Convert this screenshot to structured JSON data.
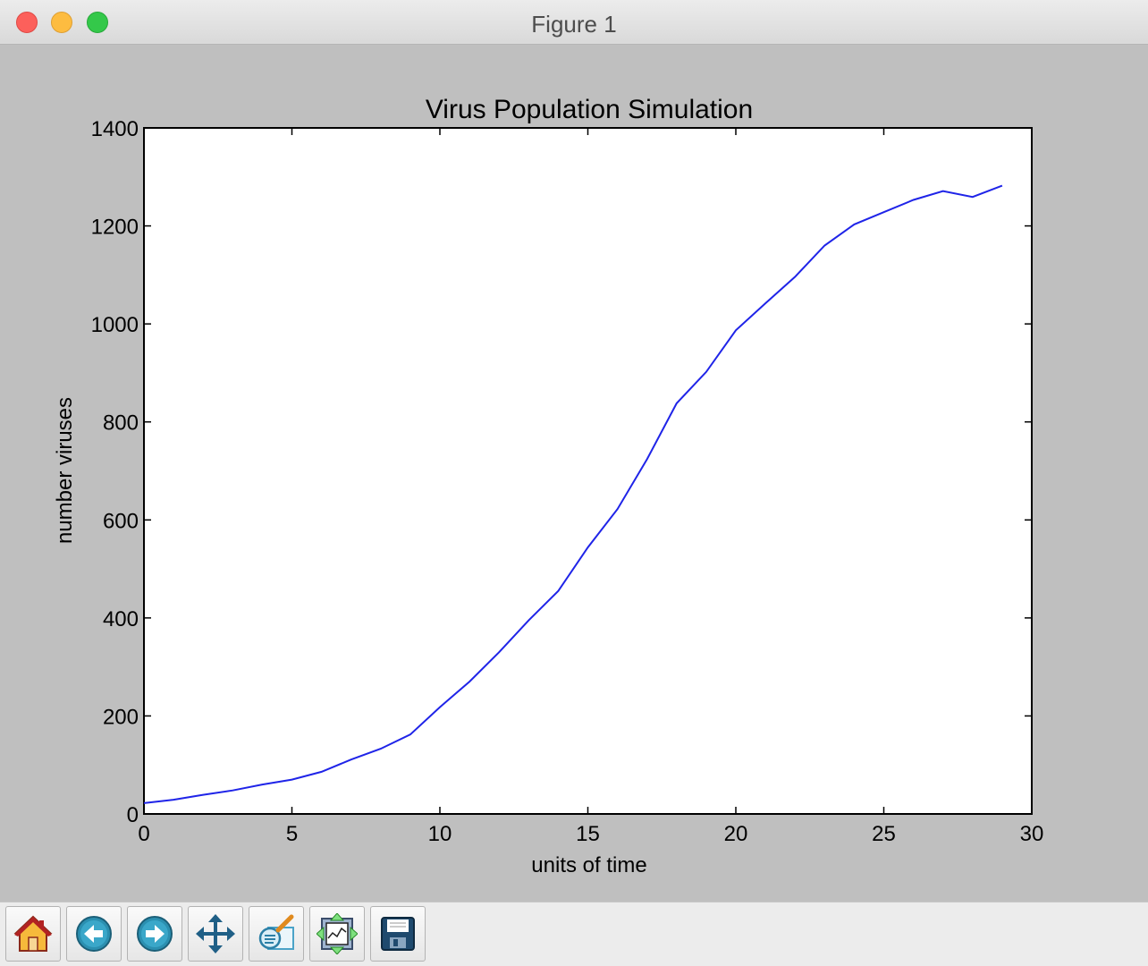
{
  "window": {
    "title": "Figure 1"
  },
  "toolbar": {
    "buttons": [
      {
        "icon": "home-icon"
      },
      {
        "icon": "back-arrow-icon"
      },
      {
        "icon": "forward-arrow-icon"
      },
      {
        "icon": "pan-move-icon"
      },
      {
        "icon": "zoom-rect-icon"
      },
      {
        "icon": "subplot-config-icon"
      },
      {
        "icon": "save-floppy-icon"
      }
    ]
  },
  "chart_data": {
    "type": "line",
    "title": "Virus Population Simulation",
    "xlabel": "units of time",
    "ylabel": "number viruses",
    "xlim": [
      0,
      30
    ],
    "ylim": [
      0,
      1400
    ],
    "xticks": [
      0,
      5,
      10,
      15,
      20,
      25,
      30
    ],
    "yticks": [
      0,
      200,
      400,
      600,
      800,
      1000,
      1200,
      1400
    ],
    "grid": false,
    "line_color": "#1f24e8",
    "series": [
      {
        "x": [
          0,
          1,
          2,
          3,
          4,
          5,
          6,
          7,
          8,
          9,
          10,
          11,
          12,
          13,
          14,
          15,
          16,
          17,
          18,
          19,
          20,
          21,
          22,
          23,
          24,
          25,
          26,
          27,
          28,
          29
        ],
        "values": [
          22,
          29,
          39,
          48,
          60,
          70,
          86,
          111,
          133,
          162,
          218,
          270,
          330,
          395,
          455,
          544,
          622,
          724,
          838,
          902,
          987,
          1042,
          1096,
          1160,
          1203,
          1228,
          1253,
          1271,
          1259,
          1282
        ]
      }
    ]
  }
}
